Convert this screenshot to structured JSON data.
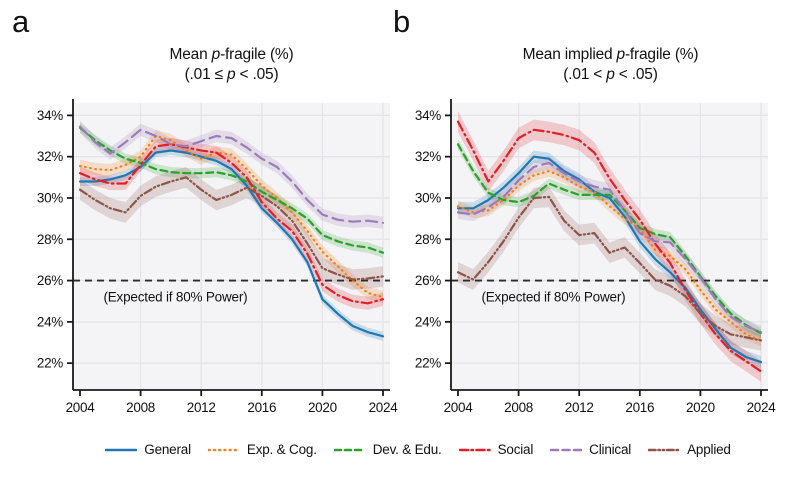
{
  "figure": {
    "panel_a_label": "a",
    "panel_b_label": "b"
  },
  "panels": [
    {
      "title_pre": "Mean ",
      "title_it": "p",
      "title_post": "-fragile (%)",
      "sub_pre": "(.01 ≤ ",
      "sub_it": "p",
      "sub_post": " < .05)"
    },
    {
      "title_pre": "Mean implied ",
      "title_it": "p",
      "title_post": "-fragile (%)",
      "sub_pre": "(.01 < ",
      "sub_it": "p",
      "sub_post": " < .05)"
    }
  ],
  "legend": {
    "items": [
      {
        "label": "General",
        "color": "#2077b4",
        "sample_dash": ""
      },
      {
        "label": "Exp. & Cog.",
        "color": "#f57f17",
        "sample_dash": "0.6 4.6"
      },
      {
        "label": "Dev. & Edu.",
        "color": "#2ca02c",
        "sample_dash": "6 4"
      },
      {
        "label": "Social",
        "color": "#e02026",
        "sample_dash": "8 3.5 1.5 3.5"
      },
      {
        "label": "Clinical",
        "color": "#9d7bb8",
        "sample_dash": "7 4.5"
      },
      {
        "label": "Applied",
        "color": "#8e5449",
        "sample_dash": "6.5 3 1.3 3 1.3 3"
      }
    ]
  },
  "chart_data": [
    {
      "type": "line",
      "title": "Mean p-fragile (%)",
      "subtitle": "(.01 ≤ p < .05)",
      "x": [
        2004,
        2005,
        2006,
        2007,
        2008,
        2009,
        2010,
        2011,
        2012,
        2013,
        2014,
        2015,
        2016,
        2017,
        2018,
        2019,
        2020,
        2021,
        2022,
        2023,
        2024
      ],
      "xtick_values": [
        2004,
        2008,
        2012,
        2016,
        2020,
        2024
      ],
      "xtick_labels": [
        "2004",
        "2008",
        "2012",
        "2016",
        "2020",
        "2024"
      ],
      "ytick_values": [
        34,
        32,
        30,
        28,
        26,
        24,
        22
      ],
      "ytick_labels": [
        "34%",
        "32%",
        "30%",
        "28%",
        "26%",
        "24%",
        "22%"
      ],
      "ylim": [
        20.7,
        34.6
      ],
      "grid": true,
      "legend_position": "bottom",
      "ref_line": {
        "value": 26,
        "style": "dashed",
        "label": "(Expected if 80% Power)"
      },
      "series": [
        {
          "name": "General",
          "color": "#2077b4",
          "dash": "",
          "band": 0.22,
          "values": [
            30.8,
            30.8,
            30.9,
            31.1,
            31.5,
            32.2,
            32.3,
            32.2,
            32.0,
            31.8,
            31.4,
            30.6,
            29.5,
            28.8,
            28.0,
            26.9,
            25.1,
            24.4,
            23.8,
            23.5,
            23.3
          ]
        },
        {
          "name": "Exp. & Cog.",
          "color": "#f57f17",
          "dash": "0.6 4.6",
          "band": 0.3,
          "values": [
            31.55,
            31.4,
            31.35,
            31.6,
            32.0,
            33.0,
            32.8,
            32.3,
            31.9,
            32.2,
            32.1,
            31.4,
            30.6,
            30.0,
            29.3,
            28.4,
            27.4,
            26.7,
            26.0,
            25.4,
            25.2
          ]
        },
        {
          "name": "Dev. & Edu.",
          "color": "#2ca02c",
          "dash": "7 4.5",
          "band": 0.25,
          "values": [
            33.4,
            32.8,
            32.3,
            31.9,
            31.7,
            31.4,
            31.25,
            31.2,
            31.2,
            31.25,
            31.1,
            30.8,
            30.3,
            29.9,
            29.5,
            29.0,
            28.2,
            27.9,
            27.7,
            27.6,
            27.35
          ]
        },
        {
          "name": "Social",
          "color": "#e02026",
          "dash": "10 4 1.6 4",
          "band": 0.32,
          "values": [
            31.2,
            30.9,
            30.7,
            30.7,
            31.6,
            32.5,
            32.6,
            32.45,
            32.3,
            32.2,
            31.7,
            31.0,
            29.8,
            29.0,
            28.4,
            27.3,
            25.8,
            25.3,
            25.0,
            24.9,
            25.1
          ]
        },
        {
          "name": "Clinical",
          "color": "#9d7bb8",
          "dash": "11 6",
          "band": 0.3,
          "values": [
            33.45,
            32.7,
            32.15,
            32.7,
            33.3,
            33.0,
            32.6,
            32.5,
            32.75,
            33.0,
            32.9,
            32.45,
            31.9,
            31.5,
            30.8,
            29.9,
            29.2,
            28.95,
            28.85,
            28.9,
            28.8
          ]
        },
        {
          "name": "Applied",
          "color": "#8e5449",
          "dash": "8 3 1.3 3 1.3 3",
          "band": 0.5,
          "values": [
            30.4,
            29.9,
            29.5,
            29.3,
            30.1,
            30.55,
            30.8,
            31.0,
            30.4,
            29.9,
            30.15,
            30.5,
            30.1,
            29.6,
            28.9,
            27.8,
            26.6,
            26.3,
            26.05,
            26.1,
            26.2
          ]
        }
      ]
    },
    {
      "type": "line",
      "title": "Mean implied p-fragile (%)",
      "subtitle": "(.01 < p < .05)",
      "x": [
        2004,
        2005,
        2006,
        2007,
        2008,
        2009,
        2010,
        2011,
        2012,
        2013,
        2014,
        2015,
        2016,
        2017,
        2018,
        2019,
        2020,
        2021,
        2022,
        2023,
        2024
      ],
      "xtick_values": [
        2004,
        2008,
        2012,
        2016,
        2020,
        2024
      ],
      "xtick_labels": [
        "2004",
        "2008",
        "2012",
        "2016",
        "2020",
        "2024"
      ],
      "ytick_values": [
        34,
        32,
        30,
        28,
        26,
        24,
        22
      ],
      "ytick_labels": [
        "34%",
        "32%",
        "30%",
        "28%",
        "26%",
        "24%",
        "22%"
      ],
      "ylim": [
        20.7,
        34.6
      ],
      "grid": true,
      "legend_position": "bottom",
      "ref_line": {
        "value": 26,
        "style": "dashed",
        "label": "(Expected if 80% Power)"
      },
      "series": [
        {
          "name": "General",
          "color": "#2077b4",
          "dash": "",
          "band": 0.3,
          "values": [
            29.5,
            29.5,
            29.9,
            30.5,
            31.2,
            32.0,
            31.9,
            31.3,
            30.9,
            30.3,
            30.0,
            29.1,
            27.9,
            27.05,
            26.4,
            25.65,
            24.6,
            23.65,
            22.75,
            22.3,
            22.05
          ]
        },
        {
          "name": "Exp. & Cog.",
          "color": "#f57f17",
          "dash": "0.6 4.6",
          "band": 0.28,
          "values": [
            29.6,
            29.3,
            29.4,
            29.9,
            30.6,
            31.1,
            31.3,
            31.0,
            30.55,
            30.3,
            29.6,
            29.0,
            28.5,
            27.5,
            27.2,
            26.55,
            25.55,
            24.6,
            24.0,
            23.4,
            23.1
          ]
        },
        {
          "name": "Dev. & Edu.",
          "color": "#2ca02c",
          "dash": "7 4.5",
          "band": 0.25,
          "values": [
            32.6,
            31.3,
            30.25,
            29.9,
            29.8,
            30.1,
            30.7,
            30.4,
            30.15,
            30.15,
            30.15,
            29.4,
            28.55,
            28.25,
            28.1,
            27.2,
            26.2,
            25.25,
            24.4,
            23.85,
            23.45
          ]
        },
        {
          "name": "Social",
          "color": "#e02026",
          "dash": "10 4 1.6 4",
          "band": 0.5,
          "values": [
            33.7,
            32.3,
            30.8,
            31.8,
            32.9,
            33.3,
            33.2,
            33.05,
            32.8,
            32.2,
            30.95,
            29.9,
            28.95,
            27.8,
            26.85,
            25.55,
            24.4,
            23.4,
            22.6,
            22.1,
            21.6
          ]
        },
        {
          "name": "Clinical",
          "color": "#9d7bb8",
          "dash": "11 6",
          "band": 0.32,
          "values": [
            29.3,
            29.2,
            29.55,
            30.05,
            30.85,
            31.5,
            31.7,
            31.2,
            30.8,
            30.55,
            30.4,
            29.4,
            28.3,
            27.9,
            27.85,
            27.05,
            26.15,
            25.1,
            24.25,
            23.8,
            23.5
          ]
        },
        {
          "name": "Applied",
          "color": "#8e5449",
          "dash": "8 3 1.3 3 1.3 3",
          "band": 0.5,
          "values": [
            26.4,
            26.05,
            26.9,
            27.9,
            29.05,
            30.0,
            30.05,
            28.9,
            28.2,
            28.3,
            27.35,
            27.6,
            26.85,
            26.05,
            25.75,
            25.25,
            24.4,
            23.8,
            23.4,
            23.25,
            23.1
          ]
        }
      ]
    }
  ]
}
